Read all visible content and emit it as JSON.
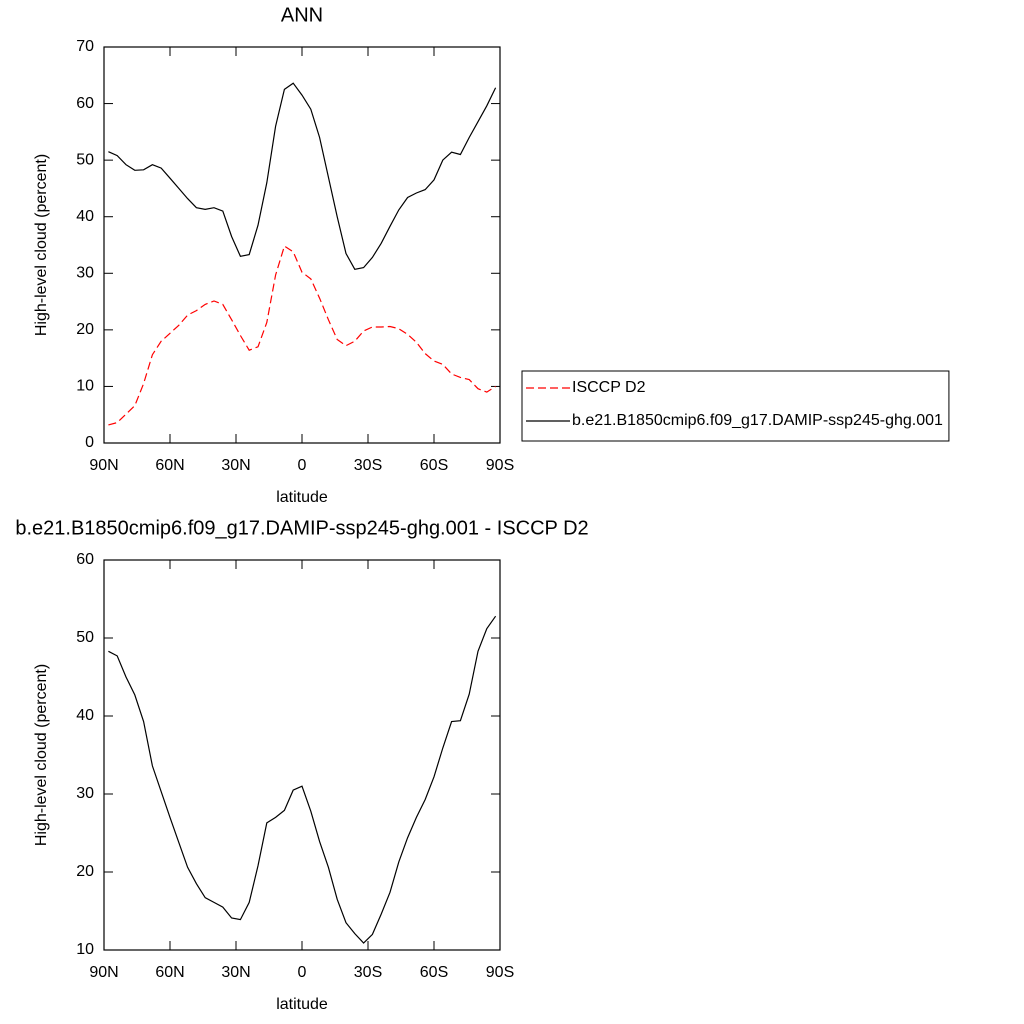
{
  "chart_data": [
    {
      "type": "line",
      "title": "ANN",
      "xlabel": "latitude",
      "ylabel": "High-level cloud (percent)",
      "x": [
        88,
        84,
        80,
        76,
        72,
        68,
        64,
        60,
        56,
        52,
        48,
        44,
        40,
        36,
        32,
        28,
        24,
        20,
        16,
        12,
        8,
        4,
        0,
        -4,
        -8,
        -12,
        -16,
        -20,
        -24,
        -28,
        -32,
        -36,
        -40,
        -44,
        -48,
        -52,
        -56,
        -60,
        -64,
        -68,
        -72,
        -76,
        -80,
        -84,
        -88
      ],
      "series": [
        {
          "name": "ISCCP D2",
          "color": "#ff0000",
          "dashed": true,
          "values": [
            3.2,
            3.6,
            5.1,
            6.6,
            10.5,
            15.6,
            18,
            19.4,
            20.8,
            22.6,
            23.4,
            24.5,
            25.1,
            24.5,
            21.8,
            19,
            16.4,
            17,
            21.3,
            29.7,
            34.8,
            33.8,
            30.2,
            29,
            25.6,
            21.8,
            18.3,
            17.2,
            18,
            19.8,
            20.5,
            20.5,
            20.6,
            20.2,
            19.2,
            17.8,
            15.8,
            14.5,
            13.9,
            12.2,
            11.6,
            11.2,
            9.6,
            9,
            10
          ]
        },
        {
          "name": "b.e21.B1850cmip6.f09_g17.DAMIP-ssp245-ghg.001",
          "color": "#000000",
          "dashed": false,
          "values": [
            51.5,
            50.8,
            49.2,
            48.2,
            48.3,
            49.2,
            48.6,
            46.8,
            45,
            43.2,
            41.6,
            41.3,
            41.6,
            41,
            36.5,
            33,
            33.3,
            38.5,
            46,
            56,
            62.5,
            63.6,
            61.5,
            59,
            54,
            47,
            40,
            33.5,
            30.7,
            31,
            32.8,
            35.3,
            38.3,
            41.2,
            43.4,
            44.2,
            44.8,
            46.5,
            50,
            51.4,
            51,
            54,
            56.8,
            59.6,
            62.8
          ]
        }
      ],
      "xlim": [
        90,
        -90
      ],
      "xticks": [
        {
          "value": 90,
          "label": "90N"
        },
        {
          "value": 60,
          "label": "60N"
        },
        {
          "value": 30,
          "label": "30N"
        },
        0,
        {
          "value": -30,
          "label": "30S"
        },
        {
          "value": -60,
          "label": "60S"
        },
        {
          "value": -90,
          "label": "90S"
        }
      ],
      "ylim": [
        0,
        70
      ],
      "yticks": [
        0,
        10,
        20,
        30,
        40,
        50,
        60,
        70
      ],
      "legend": "right"
    },
    {
      "type": "line",
      "title": "b.e21.B1850cmip6.f09_g17.DAMIP-ssp245-ghg.001 - ISCCP D2",
      "xlabel": "latitude",
      "ylabel": "High-level cloud (percent)",
      "x": [
        88,
        84,
        80,
        76,
        72,
        68,
        64,
        60,
        56,
        52,
        48,
        44,
        40,
        36,
        32,
        28,
        24,
        20,
        16,
        12,
        8,
        4,
        0,
        -4,
        -8,
        -12,
        -16,
        -20,
        -24,
        -28,
        -32,
        -36,
        -40,
        -44,
        -48,
        -52,
        -56,
        -60,
        -64,
        -68,
        -72,
        -76,
        -80,
        -84,
        -88
      ],
      "series": [
        {
          "color": "#000000",
          "dashed": false,
          "values": [
            48.3,
            47.7,
            45,
            42.7,
            39.3,
            33.6,
            30.3,
            27,
            23.8,
            20.6,
            18.5,
            16.7,
            16.1,
            15.5,
            14.1,
            13.9,
            16.1,
            20.8,
            26.3,
            27,
            27.9,
            30.5,
            31,
            27.8,
            23.9,
            20.6,
            16.5,
            13.5,
            12.1,
            10.9,
            12,
            14.6,
            17.4,
            21.3,
            24.4,
            27,
            29.3,
            32.2,
            35.9,
            39.3,
            39.4,
            42.8,
            48.3,
            51.2,
            52.8
          ]
        }
      ],
      "xlim": [
        90,
        -90
      ],
      "xticks": [
        {
          "value": 90,
          "label": "90N"
        },
        {
          "value": 60,
          "label": "60N"
        },
        {
          "value": 30,
          "label": "30N"
        },
        0,
        {
          "value": -30,
          "label": "30S"
        },
        {
          "value": -60,
          "label": "60S"
        },
        {
          "value": -90,
          "label": "90S"
        }
      ],
      "ylim": [
        10,
        60
      ],
      "yticks": [
        10,
        20,
        30,
        40,
        50,
        60
      ]
    }
  ]
}
